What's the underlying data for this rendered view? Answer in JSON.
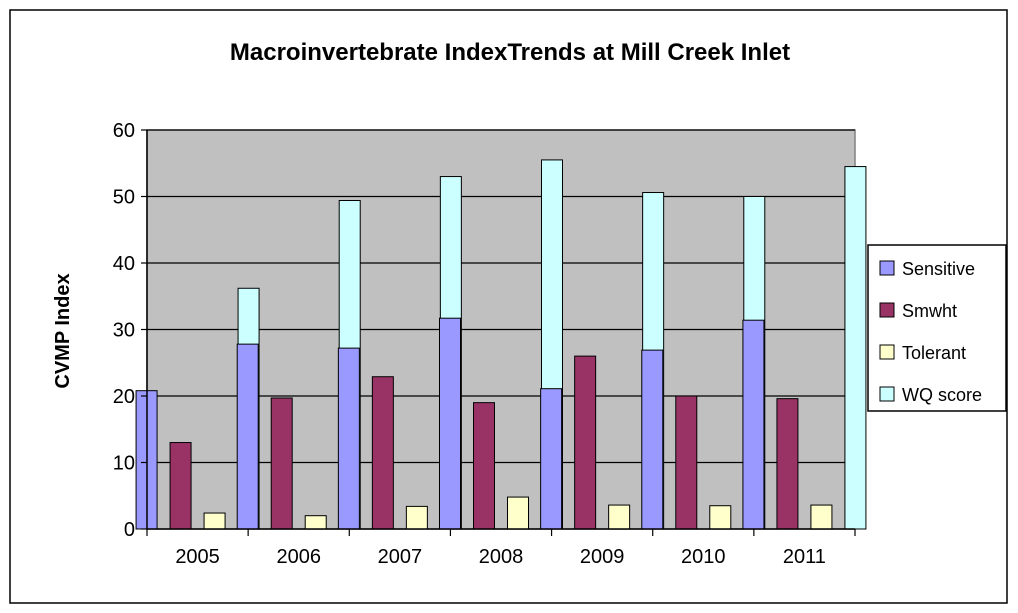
{
  "chart_data": {
    "type": "bar",
    "title": "Macroinvertebrate  IndexTrends  at Mill Creek Inlet",
    "xlabel": "",
    "ylabel": "CVMP Index",
    "categories": [
      "2005",
      "2006",
      "2007",
      "2008",
      "2009",
      "2010",
      "2011"
    ],
    "ylim": [
      0,
      60
    ],
    "yticks": [
      0,
      10,
      20,
      30,
      40,
      50,
      60
    ],
    "grid": true,
    "legend_position": "right",
    "series": [
      {
        "name": "Sensitive",
        "color": "#9999ff",
        "values": [
          20.8,
          27.8,
          27.2,
          31.7,
          21.1,
          26.9,
          31.4
        ]
      },
      {
        "name": "Smwht",
        "color": "#993366",
        "values": [
          13.0,
          19.7,
          22.9,
          19.0,
          26.0,
          20.0,
          19.6
        ]
      },
      {
        "name": "Tolerant",
        "color": "#ffffcc",
        "values": [
          2.4,
          2.0,
          3.4,
          4.8,
          3.6,
          3.5,
          3.6
        ]
      },
      {
        "name": "WQ score",
        "color": "#ccffff",
        "values": [
          36.2,
          49.4,
          53.0,
          55.5,
          50.6,
          50.0,
          54.5
        ]
      }
    ]
  }
}
